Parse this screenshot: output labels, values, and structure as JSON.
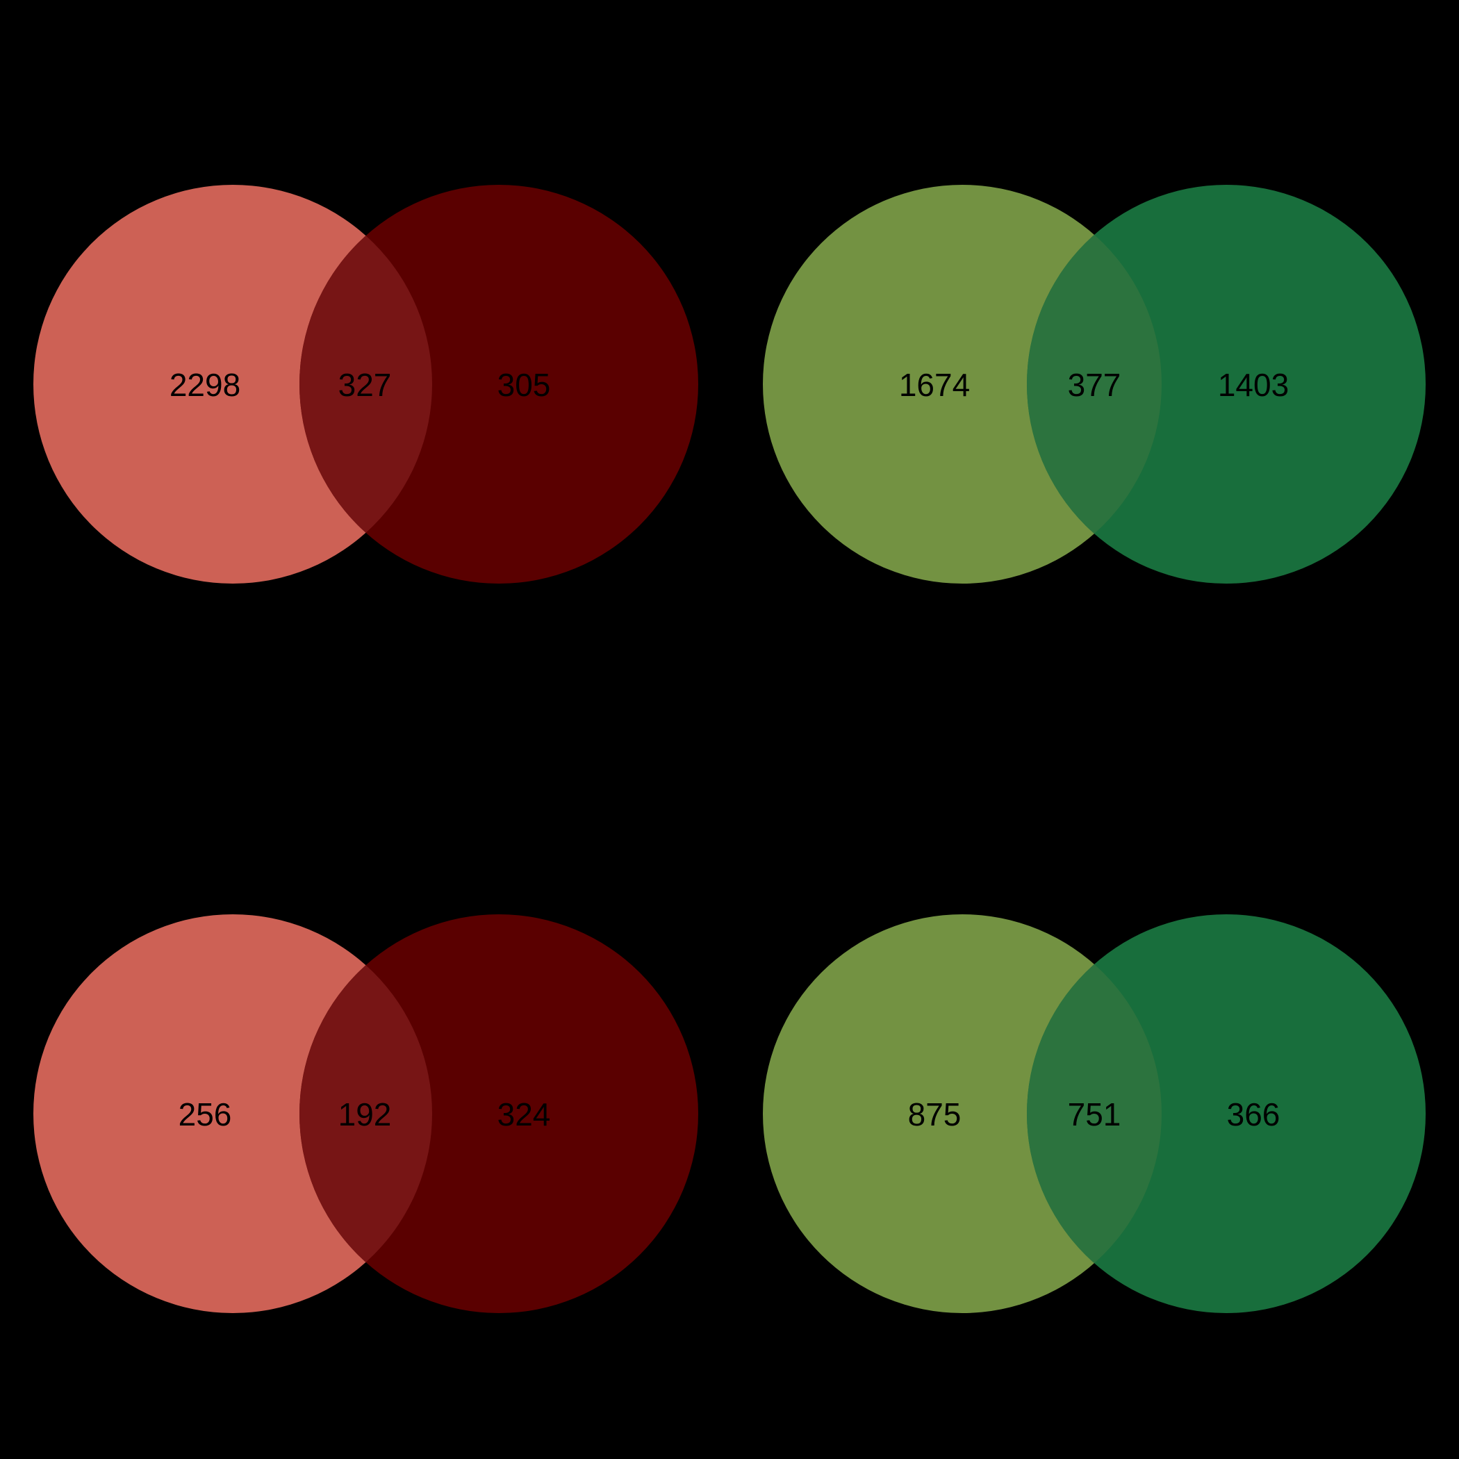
{
  "background": "#000000",
  "panels": [
    {
      "colors": {
        "left": "#CD6155",
        "right": "#5A0000",
        "overlap": "#771515"
      },
      "counts": {
        "left": "2298",
        "overlap": "327",
        "right": "305"
      }
    },
    {
      "colors": {
        "left": "#739242",
        "right": "#186E3C",
        "overlap": "#2C733E"
      },
      "counts": {
        "left": "1674",
        "overlap": "377",
        "right": "1403"
      }
    },
    {
      "colors": {
        "left": "#CD6155",
        "right": "#5A0000",
        "overlap": "#771515"
      },
      "counts": {
        "left": "256",
        "overlap": "192",
        "right": "324"
      }
    },
    {
      "colors": {
        "left": "#739242",
        "right": "#186E3C",
        "overlap": "#2C733E"
      },
      "counts": {
        "left": "875",
        "overlap": "751",
        "right": "366"
      }
    }
  ]
}
